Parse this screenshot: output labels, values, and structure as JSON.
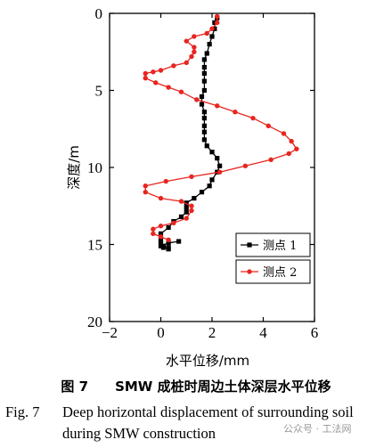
{
  "chart_data": {
    "type": "line",
    "xlabel": "水平位移/mm",
    "ylabel": "深度/m",
    "xlim": [
      -2,
      6
    ],
    "ylim": [
      0,
      20
    ],
    "y_inverted": true,
    "x_ticks": [
      -2,
      0,
      2,
      4,
      6
    ],
    "x_tick_labels": [
      "−2",
      "0",
      "2",
      "4",
      "6"
    ],
    "y_ticks": [
      0,
      5,
      10,
      15,
      20
    ],
    "legend_position": "lower-right",
    "series": [
      {
        "name": "测点 1",
        "color": "#000000",
        "marker": "square",
        "x": [
          2.2,
          2.1,
          2.1,
          2.0,
          1.9,
          1.8,
          1.7,
          1.7,
          1.7,
          1.7,
          1.7,
          1.6,
          1.6,
          1.7,
          1.7,
          1.7,
          1.7,
          1.7,
          1.8,
          2.0,
          2.2,
          2.3,
          2.2,
          2.0,
          1.9,
          1.6,
          1.3,
          1.0,
          1.0,
          1.0,
          0.8,
          0.5,
          0.3,
          0.0,
          0.0,
          0.0,
          0.1,
          0.3,
          0.3,
          0.1,
          0.0,
          0.3,
          0.7
        ],
        "y": [
          0.3,
          0.6,
          1.0,
          1.5,
          2.0,
          2.6,
          3.0,
          3.5,
          3.9,
          4.4,
          5.0,
          5.4,
          5.9,
          6.4,
          6.8,
          7.3,
          7.7,
          8.2,
          8.6,
          9.0,
          9.4,
          9.9,
          10.3,
          10.8,
          11.2,
          11.6,
          12.0,
          12.3,
          12.6,
          12.9,
          13.2,
          13.5,
          13.9,
          14.3,
          14.7,
          14.9,
          15.1,
          15.2,
          15.3,
          15.2,
          15.1,
          14.9,
          14.8
        ]
      },
      {
        "name": "测点 2",
        "color": "#e8251f",
        "marker": "circle",
        "x": [
          2.2,
          2.2,
          2.0,
          1.8,
          1.3,
          1.0,
          1.3,
          1.3,
          1.2,
          1.0,
          0.5,
          0.0,
          -0.3,
          -0.6,
          -0.6,
          -0.2,
          0.3,
          0.8,
          1.4,
          2.2,
          2.9,
          3.6,
          4.2,
          4.8,
          5.1,
          5.3,
          5.0,
          4.3,
          3.3,
          2.3,
          1.2,
          0.2,
          -0.6,
          -0.6,
          0.0,
          0.8,
          1.2,
          1.2,
          1.0,
          0.5,
          0.0,
          -0.3,
          -0.3,
          0.0,
          0.3
        ],
        "y": [
          0.2,
          0.6,
          1.0,
          1.3,
          1.5,
          1.8,
          2.2,
          2.5,
          2.8,
          3.2,
          3.4,
          3.7,
          3.8,
          3.9,
          4.2,
          4.5,
          4.8,
          5.1,
          5.6,
          6.0,
          6.4,
          6.8,
          7.3,
          7.8,
          8.3,
          8.8,
          9.1,
          9.5,
          9.9,
          10.3,
          10.6,
          10.9,
          11.2,
          11.6,
          12.0,
          12.2,
          12.5,
          12.8,
          13.3,
          13.6,
          13.8,
          14.0,
          14.3,
          14.5,
          14.7
        ]
      }
    ]
  },
  "caption": {
    "cn": "图 7　　SMW 成桩时周边土体深层水平位移",
    "en_fig": "Fig. 7",
    "en_line1": "Deep horizontal displacement of surrounding soil",
    "en_line2": "during SMW construction"
  },
  "watermark": "公众号 · 工法网",
  "colors": {
    "series1": "#000000",
    "series2": "#e8251f"
  }
}
